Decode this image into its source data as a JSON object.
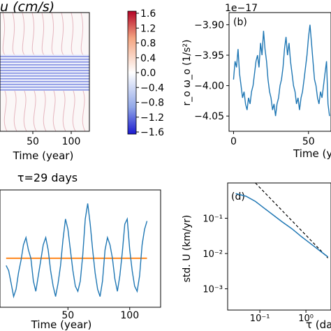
{
  "chart_data": [
    {
      "panel": "a",
      "type": "heatmap",
      "title": "u (cm/s)",
      "xlabel": "Time (year)",
      "x_ticks": [
        "50",
        "100"
      ],
      "colorbar": {
        "ticks": [
          "1.6",
          "1.2",
          "0.8",
          "0.4",
          "0.0",
          "−0.4",
          "−0.8",
          "−1.2",
          "−1.6"
        ],
        "colors": [
          "#b40426",
          "#f4a582",
          "#ffffff",
          "#92a8e8",
          "#1a1ad0"
        ]
      }
    },
    {
      "panel": "b",
      "type": "line",
      "panel_label": "(b)",
      "offset_text": "1e−17",
      "ylabel": "r_o ω_o (1/s²)",
      "xlabel": "Time (y",
      "x_ticks": [
        "0",
        "50"
      ],
      "y_ticks": [
        "−3.90",
        "−3.95",
        "−4.00",
        "−4.05"
      ],
      "xlim": [
        -3,
        65
      ],
      "ylim": [
        -4.075,
        -3.88
      ],
      "series": [
        {
          "x": [
            0,
            1,
            2,
            3,
            4,
            5,
            6,
            7,
            8,
            9,
            10,
            11,
            12,
            13,
            14,
            15,
            16,
            17,
            18,
            19,
            20,
            21,
            22,
            23,
            24,
            25,
            26,
            27,
            28,
            29,
            30,
            31,
            32,
            33,
            34,
            35,
            36,
            37,
            38,
            39,
            40,
            41,
            42,
            43,
            44,
            45,
            46,
            47,
            48,
            49,
            50,
            51,
            52,
            53,
            54,
            55,
            56,
            57,
            58,
            59,
            60,
            61,
            62,
            63,
            64
          ],
          "y": [
            -3.99,
            -3.96,
            -3.97,
            -3.94,
            -3.98,
            -4.0,
            -4.02,
            -4.01,
            -4.03,
            -4.04,
            -4.02,
            -4.03,
            -4.01,
            -4.0,
            -3.98,
            -3.96,
            -3.95,
            -3.97,
            -3.93,
            -3.95,
            -3.91,
            -3.94,
            -3.96,
            -3.99,
            -4.01,
            -4.02,
            -4.04,
            -4.03,
            -4.05,
            -4.03,
            -4.02,
            -4.0,
            -3.99,
            -3.97,
            -3.94,
            -3.92,
            -3.95,
            -3.93,
            -3.96,
            -3.98,
            -4.0,
            -4.01,
            -4.03,
            -4.02,
            -4.04,
            -4.02,
            -4.01,
            -3.99,
            -3.97,
            -3.95,
            -3.92,
            -3.9,
            -3.93,
            -3.96,
            -3.99,
            -4.0,
            -4.02,
            -4.03,
            -4.01,
            -4.02,
            -4.0,
            -3.98,
            -3.96,
            -4.03,
            -4.05
          ]
        }
      ]
    },
    {
      "panel": "c",
      "type": "line",
      "title": "τ=29 days",
      "xlabel": "Time (year)",
      "x_ticks": [
        "50",
        "100"
      ],
      "xlim": [
        -5,
        125
      ],
      "ylim": [
        0,
        1
      ],
      "series": [
        {
          "x": [
            0,
            2,
            4,
            6,
            8,
            10,
            12,
            14,
            16,
            18,
            20,
            22,
            24,
            26,
            28,
            30,
            32,
            34,
            36,
            38,
            40,
            42,
            44,
            46,
            48,
            50,
            52,
            54,
            56,
            58,
            60,
            62,
            64,
            66,
            68,
            70,
            72,
            74,
            76,
            78,
            80,
            82,
            84,
            86,
            88,
            90,
            92,
            94,
            96,
            98,
            100,
            102,
            104,
            106,
            108,
            110,
            112,
            114
          ],
          "y": [
            0.35,
            0.3,
            0.18,
            0.05,
            0.12,
            0.28,
            0.4,
            0.55,
            0.62,
            0.5,
            0.42,
            0.2,
            0.1,
            0.25,
            0.4,
            0.55,
            0.62,
            0.5,
            0.3,
            0.15,
            0.05,
            0.18,
            0.35,
            0.6,
            0.8,
            0.7,
            0.5,
            0.3,
            0.15,
            0.1,
            0.2,
            0.45,
            0.8,
            0.95,
            0.75,
            0.5,
            0.28,
            0.12,
            0.05,
            0.2,
            0.5,
            0.62,
            0.55,
            0.42,
            0.22,
            0.1,
            0.25,
            0.48,
            0.75,
            0.8,
            0.5,
            0.3,
            0.15,
            0.1,
            0.25,
            0.55,
            0.7,
            0.78
          ]
        },
        {
          "x": [
            0,
            114
          ],
          "y": [
            0.42,
            0.42
          ],
          "color": "#ff7f0e"
        }
      ]
    },
    {
      "panel": "d",
      "type": "line",
      "panel_label": "(d)",
      "ylabel": "std. U (km/yr)",
      "xlabel": "τ (da",
      "x_scale": "log",
      "y_scale": "log",
      "x_ticks": [
        "10⁻¹",
        "10⁰"
      ],
      "y_ticks": [
        "10⁻¹",
        "10⁻²",
        "10⁻³"
      ],
      "xlim": [
        0.02,
        3.5
      ],
      "ylim": [
        0.00025,
        1.0
      ],
      "series": [
        {
          "x": [
            0.03,
            0.05,
            0.08,
            0.1,
            0.15,
            0.2,
            0.3,
            0.5,
            0.8,
            1.0,
            1.5,
            2.0,
            3.0
          ],
          "y": [
            0.5,
            0.42,
            0.3,
            0.24,
            0.16,
            0.12,
            0.08,
            0.05,
            0.03,
            0.024,
            0.016,
            0.012,
            0.008
          ],
          "color": "#1f77b4"
        },
        {
          "x": [
            0.08,
            3.0
          ],
          "y": [
            1.0,
            0.0075
          ],
          "style": "dashed",
          "color": "#000000"
        }
      ]
    }
  ],
  "colors": {
    "line": "#1f77b4",
    "mean": "#ff7f0e"
  }
}
